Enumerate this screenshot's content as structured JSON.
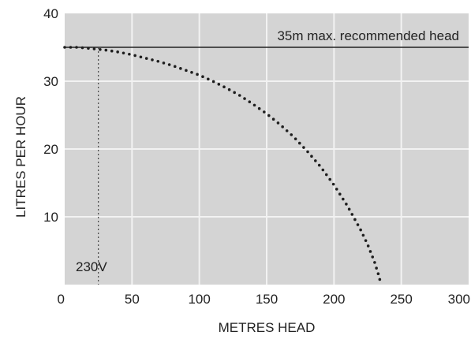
{
  "chart_data": {
    "type": "scatter",
    "title": "",
    "xlabel": "METRES HEAD",
    "ylabel": "LITRES PER HOUR",
    "xlim": [
      0,
      300
    ],
    "ylim": [
      0,
      40
    ],
    "x_ticks": [
      "0",
      "50",
      "100",
      "150",
      "200",
      "250",
      "300"
    ],
    "y_ticks": [
      "10",
      "20",
      "30",
      "40"
    ],
    "grid": true,
    "legend": "none",
    "colors": {
      "plot_bg": "#d4d4d4",
      "grid": "#f2f2f2",
      "line": "#222222",
      "dots": "#1e1e1e",
      "text": "#222222"
    },
    "series": [
      {
        "name": "230V",
        "points": [
          [
            0,
            35.0
          ],
          [
            10,
            35.0
          ],
          [
            20,
            34.8
          ],
          [
            30,
            34.6
          ],
          [
            40,
            34.3
          ],
          [
            50,
            33.9
          ],
          [
            60,
            33.4
          ],
          [
            70,
            32.9
          ],
          [
            80,
            32.3
          ],
          [
            90,
            31.6
          ],
          [
            100,
            30.9
          ],
          [
            110,
            30.0
          ],
          [
            120,
            29.0
          ],
          [
            130,
            27.9
          ],
          [
            140,
            26.6
          ],
          [
            150,
            25.2
          ],
          [
            160,
            23.6
          ],
          [
            170,
            21.8
          ],
          [
            180,
            19.7
          ],
          [
            190,
            17.4
          ],
          [
            200,
            14.7
          ],
          [
            210,
            11.6
          ],
          [
            220,
            8.0
          ],
          [
            225,
            5.9
          ],
          [
            230,
            3.4
          ],
          [
            233,
            1.5
          ],
          [
            235,
            0
          ]
        ]
      }
    ],
    "annotations": {
      "max_head_label": "35m max. recommended  head",
      "max_head_value": 35,
      "voltage_label": "230V",
      "voltage_x": 25
    }
  }
}
